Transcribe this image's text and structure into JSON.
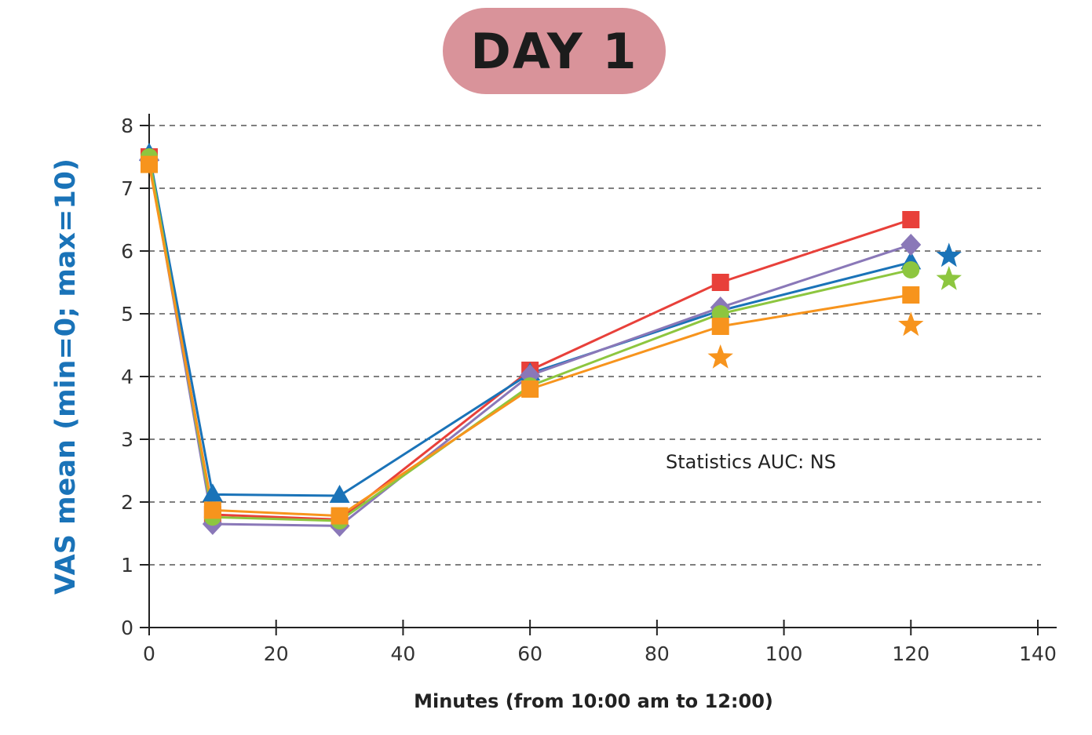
{
  "title": "DAY 1",
  "colors": {
    "title_pill": "#d9939a",
    "ylabel": "#1a73b8",
    "axis": "#222222",
    "grid": "#333333"
  },
  "chart_data": {
    "type": "line",
    "xlabel": "Minutes (from 10:00 am to 12:00)",
    "ylabel": "VAS mean (min=0; max=10)",
    "xlim": [
      0,
      140
    ],
    "ylim": [
      0,
      8
    ],
    "x_ticks": [
      "0",
      "20",
      "40",
      "60",
      "80",
      "100",
      "120",
      "140"
    ],
    "y_ticks": [
      "0",
      "1",
      "2",
      "3",
      "4",
      "5",
      "6",
      "7",
      "8"
    ],
    "grid": "horizontal dashed",
    "x": [
      0,
      10,
      30,
      60,
      90,
      120
    ],
    "series": [
      {
        "color": "#e8403a",
        "marker": "square",
        "values": [
          7.5,
          1.8,
          1.72,
          4.1,
          5.5,
          6.5
        ]
      },
      {
        "color": "#1a73b8",
        "marker": "triangle",
        "values": [
          7.55,
          2.12,
          2.1,
          4.05,
          5.05,
          5.82
        ]
      },
      {
        "color": "#8a78b8",
        "marker": "diamond",
        "values": [
          7.45,
          1.65,
          1.62,
          4.02,
          5.1,
          6.1
        ]
      },
      {
        "color": "#8dc63f",
        "marker": "circle",
        "values": [
          7.5,
          1.76,
          1.7,
          3.85,
          5.0,
          5.7
        ]
      },
      {
        "color": "#f7941d",
        "marker": "square",
        "values": [
          7.38,
          1.87,
          1.78,
          3.8,
          4.8,
          5.3
        ]
      }
    ],
    "stars": [
      {
        "color": "#1a73b8",
        "x": 126,
        "y": 5.92
      },
      {
        "color": "#8dc63f",
        "x": 126,
        "y": 5.55
      },
      {
        "color": "#f7941d",
        "x": 90,
        "y": 4.3
      },
      {
        "color": "#f7941d",
        "x": 120,
        "y": 4.82
      }
    ],
    "annotations": [
      "Statistics AUC: NS"
    ]
  }
}
